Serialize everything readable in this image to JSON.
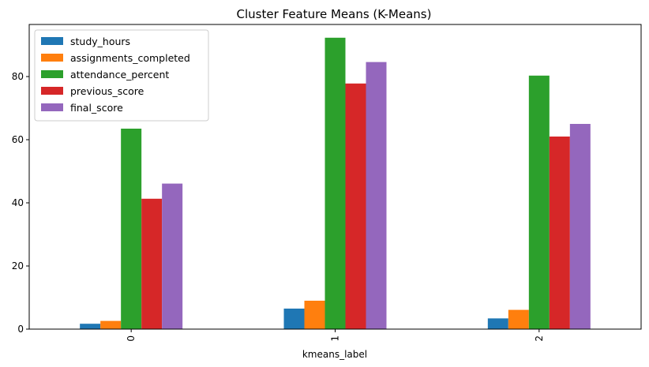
{
  "chart_data": {
    "type": "bar",
    "title": "Cluster Feature Means (K-Means)",
    "xlabel": "kmeans_label",
    "ylabel": "",
    "categories": [
      "0",
      "1",
      "2"
    ],
    "ylim": [
      0,
      96.5
    ],
    "yticks": [
      0,
      20,
      40,
      60,
      80
    ],
    "grid": false,
    "legend_position": "top-left",
    "series": [
      {
        "name": "study_hours",
        "color": "#1f77b4",
        "values": [
          1.7,
          6.5,
          3.4
        ]
      },
      {
        "name": "assignments_completed",
        "color": "#ff7f0e",
        "values": [
          2.6,
          9.0,
          6.1
        ]
      },
      {
        "name": "attendance_percent",
        "color": "#2ca02c",
        "values": [
          63.5,
          92.3,
          80.3
        ]
      },
      {
        "name": "previous_score",
        "color": "#d62728",
        "values": [
          41.3,
          77.8,
          61.0
        ]
      },
      {
        "name": "final_score",
        "color": "#9467bd",
        "values": [
          46.1,
          84.6,
          65.0
        ]
      }
    ]
  }
}
